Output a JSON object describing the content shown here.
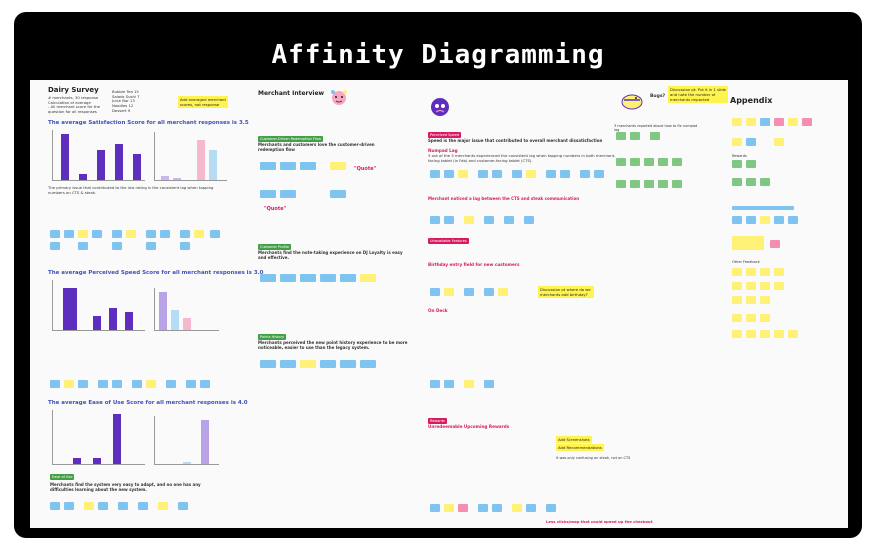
{
  "title": "Affinity Diagramming",
  "survey": {
    "heading": "Dairy Survey",
    "meta_lines": [
      "# merchants, 30 response",
      "Calculation of average",
      "- All merchant score for the",
      "question for all responses"
    ],
    "scores_lines": [
      "Bubble Tea 15",
      "Salads Sushi 7",
      "Juice Bar 13",
      "Noodles 12",
      "Dessert 9"
    ],
    "note": "Add averaged merchant scores, not response",
    "satisfaction_title": "The average Satisfaction Score for all merchant responses is 3.5",
    "speed_title": "The average Perceived Speed Score for all merchant responses is 3.0",
    "ease_title": "The average Ease of Use Score for all merchant responses is 4.0",
    "ease_of_use_tag": "Ease of Use",
    "ease_note": "Merchants find the system very easy to adapt, and no one has any difficulties learning about the new system."
  },
  "interview": {
    "heading": "Merchant Interview",
    "redemption_tag": "Customer-Driven Redemption Flow",
    "redemption_text": "Merchants and customers love the customer-driven redemption flow",
    "quote1": "\"Quote\"",
    "quote2": "\"Quote\"",
    "profile_tag": "Customer Profile",
    "profile_text": "Merchants find the note-taking experience on DJ Loyalty is easy and effective.",
    "points_tag": "Points History",
    "points_text": "Merchants perceived the new point history experience to be more noticeable, easier to use than the legacy system."
  },
  "speed_section": {
    "tag": "Perceived Speed",
    "heading": "Speed is the major issue that contributed to overall merchant dissatisfaction",
    "numpad_title": "Numpad Lag",
    "numpad_text": "3 out of the 5 merchants experienced the consistent lag when tapping numbers in both merchant-facing tablet (in Fab) and customer-facing tablet (CTS).",
    "switch_text": "Merchant noticed a lag between the CTS and steak communication",
    "features_tag": "Unavailable Features",
    "birthday_title": "Birthday entry field for new customers",
    "ondeck_title": "On Deck",
    "discussion": "Discussion pt where do we merchants add birthday?",
    "rewards_tag": "Rewards",
    "rewards_title": "Unredeemable Upcoming Rewards",
    "add_screenshots": "Add Screenshots",
    "add_recs": "Add Recommendations",
    "confusing": "it was only confusing on steak, not on CTS",
    "clicking": "Less clicks/map that could speed up the checkout"
  },
  "bugs": {
    "label": "Bugs?",
    "discussion": "Discussion pt: Put it in 1 slide and note the number of merchants impacted",
    "green_note": "3 merchants reported about how to fix numpad lag"
  },
  "appendix": {
    "heading": "Appendix",
    "label_a": "Rewards",
    "label_b": "Other Feedback"
  },
  "colors": {
    "frame": "#000000",
    "board": "#fafafa",
    "bar_purple": "#5e2fbf",
    "bar_lavender": "#b8a3e8",
    "sticky_blue": "#7fc4f0",
    "sticky_yellow": "#fff176",
    "sticky_pink": "#f48fb1",
    "sticky_green": "#81c784",
    "tag_green": "#43a047",
    "tag_red": "#d81b60"
  }
}
